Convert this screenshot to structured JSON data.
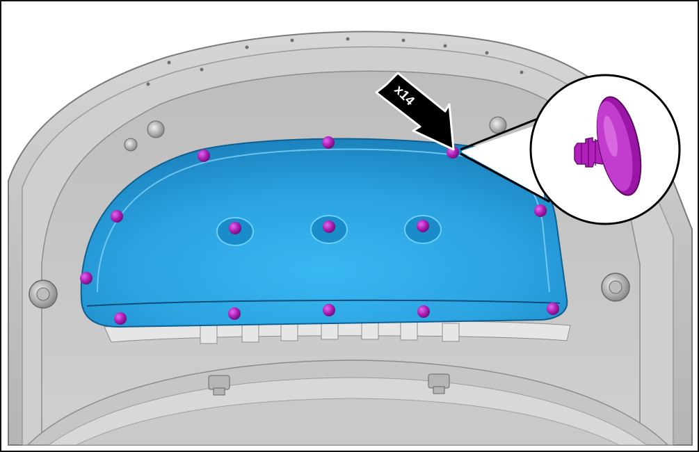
{
  "diagram": {
    "quantity_label": "x14",
    "colors": {
      "panel": "#c8c8c8",
      "panel_dark": "#8e8e8e",
      "insulator": "#2aa7e6",
      "insulator_dark": "#1a7fb6",
      "clip": "#a01aa8",
      "clip_highlight": "#d34ee0",
      "callout_arrow": "#000000",
      "border": "#111111"
    },
    "clips": {
      "count": 14,
      "description_icon": "push-pin-clip-icon"
    }
  }
}
